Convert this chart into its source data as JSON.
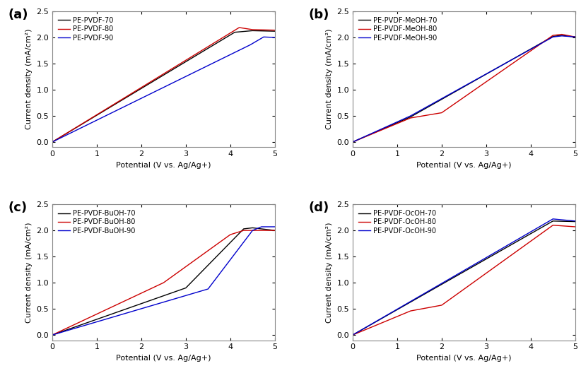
{
  "subplots": [
    {
      "label": "(a)",
      "legend_labels": [
        "PE-PVDF-70",
        "PE-PVDF-80",
        "PE-PVDF-90"
      ],
      "colors": [
        "#000000",
        "#cc0000",
        "#0000cc"
      ],
      "curves": [
        {
          "x": [
            0,
            4.1,
            4.5,
            5.0
          ],
          "y": [
            0.0,
            2.1,
            2.13,
            2.12
          ]
        },
        {
          "x": [
            0,
            4.2,
            4.5,
            5.0
          ],
          "y": [
            0.0,
            2.19,
            2.15,
            2.14
          ]
        },
        {
          "x": [
            0,
            4.45,
            4.75,
            5.0
          ],
          "y": [
            0.0,
            1.86,
            2.01,
            2.0
          ]
        }
      ]
    },
    {
      "label": "(b)",
      "legend_labels": [
        "PE-PVDF-MeOH-70",
        "PE-PVDF-MeOH-80",
        "PE-PVDF-MeOH-90"
      ],
      "colors": [
        "#000000",
        "#cc0000",
        "#0000cc"
      ],
      "curves": [
        {
          "x": [
            0,
            1.3,
            4.5,
            4.7,
            5.0
          ],
          "y": [
            0.0,
            0.48,
            2.02,
            2.04,
            2.01
          ]
        },
        {
          "x": [
            0,
            1.3,
            2.0,
            4.5,
            4.7,
            5.0
          ],
          "y": [
            0.0,
            0.46,
            0.56,
            2.04,
            2.06,
            2.01
          ]
        },
        {
          "x": [
            0,
            1.3,
            4.5,
            4.7,
            5.0
          ],
          "y": [
            0.0,
            0.5,
            2.01,
            2.03,
            2.01
          ]
        }
      ]
    },
    {
      "label": "(c)",
      "legend_labels": [
        "PE-PVDF-BuOH-70",
        "PE-PVDF-BuOH-80",
        "PE-PVDF-BuOH-90"
      ],
      "colors": [
        "#000000",
        "#cc0000",
        "#0000cc"
      ],
      "curves": [
        {
          "x": [
            0,
            3.0,
            4.3,
            4.5,
            5.0
          ],
          "y": [
            0.0,
            0.9,
            2.03,
            2.05,
            2.0
          ]
        },
        {
          "x": [
            0,
            2.5,
            4.0,
            4.3,
            5.0
          ],
          "y": [
            0.0,
            1.0,
            1.92,
            2.0,
            2.0
          ]
        },
        {
          "x": [
            0,
            3.5,
            4.5,
            4.7,
            5.0
          ],
          "y": [
            0.0,
            0.88,
            2.0,
            2.07,
            2.07
          ]
        }
      ]
    },
    {
      "label": "(d)",
      "legend_labels": [
        "PE-PVDF-OcOH-70",
        "PE-PVDF-OcOH-80",
        "PE-PVDF-OcOH-90"
      ],
      "colors": [
        "#000000",
        "#cc0000",
        "#0000cc"
      ],
      "curves": [
        {
          "x": [
            0,
            4.5,
            5.0
          ],
          "y": [
            0.0,
            2.18,
            2.17
          ]
        },
        {
          "x": [
            0,
            1.3,
            2.0,
            4.5,
            5.0
          ],
          "y": [
            0.0,
            0.46,
            0.57,
            2.1,
            2.07
          ]
        },
        {
          "x": [
            0,
            4.5,
            5.0
          ],
          "y": [
            0.0,
            2.22,
            2.18
          ]
        }
      ]
    }
  ],
  "xlabel": "Potential (V vs. Ag/Ag+)",
  "ylabel": "Current density (mA/cm²)",
  "xlim": [
    0,
    5
  ],
  "ylim": [
    -0.1,
    2.5
  ],
  "yticks": [
    0.0,
    0.5,
    1.0,
    1.5,
    2.0,
    2.5
  ],
  "xticks": [
    0,
    1,
    2,
    3,
    4,
    5
  ],
  "ax_background": "#ffffff",
  "fig_background": "#ffffff",
  "spine_color": "#888888",
  "tick_label_size": 8,
  "axis_label_size": 8,
  "legend_font_size": 7,
  "linewidth": 1.0
}
